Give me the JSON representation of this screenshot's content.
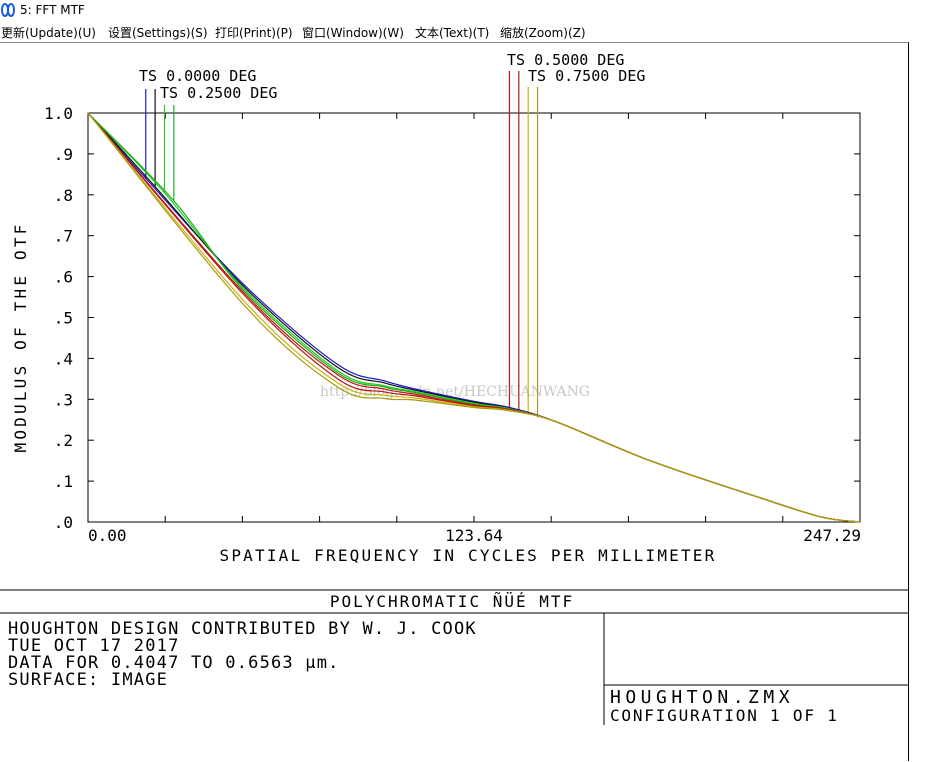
{
  "window": {
    "title": "5: FFT MTF"
  },
  "menu": [
    {
      "label": "更新(Update)(U)"
    },
    {
      "label": "设置(Settings)(S)"
    },
    {
      "label": "打印(Print)(P)"
    },
    {
      "label": "窗口(Window)(W)"
    },
    {
      "label": "文本(Text)(T)"
    },
    {
      "label": "缩放(Zoom)(Z)"
    }
  ],
  "chart_data": {
    "type": "line",
    "xlabel": "SPATIAL FREQUENCY IN CYCLES PER MILLIMETER",
    "ylabel": "MODULUS OF THE OTF",
    "xlim": [
      0,
      247.29
    ],
    "ylim": [
      0,
      1.0
    ],
    "x_tick_labels": [
      "0.00",
      "123.64",
      "247.29"
    ],
    "y_tick_labels": [
      ".0",
      ".1",
      ".2",
      ".3",
      ".4",
      ".5",
      ".6",
      ".7",
      ".8",
      ".9",
      "1.0"
    ],
    "grid": false,
    "legend": [
      "TS 0.0000 DEG",
      "TS 0.2500 DEG",
      "TS 0.5000 DEG",
      "TS 0.7500 DEG"
    ],
    "series": [
      {
        "name": "TS 0.0000 DEG",
        "color": "#1a1ad0",
        "x": [
          0,
          18.5,
          50,
          80,
          95,
          105,
          123.64,
          135,
          150,
          180,
          215,
          235,
          247.29
        ],
        "y": [
          1.0,
          0.84,
          0.58,
          0.385,
          0.345,
          0.325,
          0.295,
          0.28,
          0.245,
          0.15,
          0.06,
          0.012,
          0.0
        ]
      },
      {
        "name": "TS 0.0000 DEG",
        "color": "#101010",
        "x": [
          0,
          21.5,
          50,
          80,
          95,
          105,
          123.64,
          135,
          150,
          180,
          215,
          235,
          247.29
        ],
        "y": [
          1.0,
          0.82,
          0.575,
          0.378,
          0.34,
          0.322,
          0.293,
          0.278,
          0.245,
          0.15,
          0.06,
          0.012,
          0.0
        ]
      },
      {
        "name": "TS 0.2500 DEG",
        "color": "#22cc22",
        "x": [
          0,
          24.5,
          50,
          80,
          95,
          105,
          123.64,
          135,
          150,
          180,
          215,
          235,
          247.29
        ],
        "y": [
          1.0,
          0.805,
          0.57,
          0.37,
          0.333,
          0.318,
          0.29,
          0.277,
          0.245,
          0.15,
          0.06,
          0.012,
          0.0
        ]
      },
      {
        "name": "TS 0.2500 DEG",
        "color": "#18b018",
        "x": [
          0,
          27.5,
          50,
          80,
          95,
          105,
          123.64,
          135,
          150,
          180,
          215,
          235,
          247.29
        ],
        "y": [
          1.0,
          0.785,
          0.565,
          0.365,
          0.33,
          0.316,
          0.288,
          0.276,
          0.245,
          0.15,
          0.06,
          0.012,
          0.0
        ]
      },
      {
        "name": "TS 0.5000 DEG",
        "color": "#d01010",
        "x": [
          0,
          50,
          80,
          95,
          105,
          123.64,
          135,
          150,
          180,
          215,
          235,
          247.29
        ],
        "y": [
          1.0,
          0.56,
          0.36,
          0.325,
          0.312,
          0.286,
          0.275,
          0.245,
          0.15,
          0.06,
          0.012,
          0.0
        ]
      },
      {
        "name": "TS 0.5000 DEG",
        "color": "#b01818",
        "x": [
          0,
          50,
          80,
          95,
          105,
          123.64,
          135,
          150,
          180,
          215,
          235,
          247.29
        ],
        "y": [
          1.0,
          0.555,
          0.35,
          0.318,
          0.308,
          0.284,
          0.274,
          0.245,
          0.15,
          0.06,
          0.012,
          0.0
        ]
      },
      {
        "name": "TS 0.7500 DEG",
        "color": "#c8b400",
        "x": [
          0,
          50,
          80,
          95,
          105,
          123.64,
          135,
          150,
          180,
          215,
          235,
          247.29
        ],
        "y": [
          1.0,
          0.54,
          0.34,
          0.31,
          0.303,
          0.282,
          0.273,
          0.245,
          0.15,
          0.06,
          0.012,
          0.0
        ]
      },
      {
        "name": "TS 0.7500 DEG",
        "color": "#a89a18",
        "x": [
          0,
          50,
          80,
          95,
          105,
          123.64,
          135,
          150,
          180,
          215,
          235,
          247.29
        ],
        "y": [
          1.0,
          0.53,
          0.33,
          0.302,
          0.298,
          0.28,
          0.272,
          0.245,
          0.15,
          0.06,
          0.012,
          0.0
        ]
      }
    ],
    "marker_lines": [
      {
        "color": "#1a1ad0",
        "x": 18.5
      },
      {
        "color": "#101010",
        "x": 21.5
      },
      {
        "color": "#22cc22",
        "x": 24.5
      },
      {
        "color": "#18b018",
        "x": 27.5
      },
      {
        "color": "#d01010",
        "x": 135.0
      },
      {
        "color": "#b01818",
        "x": 138.0
      },
      {
        "color": "#c8b400",
        "x": 141.0
      },
      {
        "color": "#a89a18",
        "x": 144.0
      }
    ]
  },
  "footer": {
    "title": "POLYCHROMATIC ÑÜÉ  MTF",
    "lines": [
      "HOUGHTON DESIGN CONTRIBUTED BY W. J. COOK",
      "TUE OCT 17 2017",
      "DATA FOR 0.4047 TO 0.6563 μm.",
      "SURFACE: IMAGE"
    ],
    "file": "HOUGHTON.ZMX",
    "configuration": "CONFIGURATION 1 OF 1"
  },
  "watermark": "http://blog.csdn.net/HECHUANWANG",
  "colors": {
    "frame": "#000000",
    "background": "#ffffff"
  }
}
